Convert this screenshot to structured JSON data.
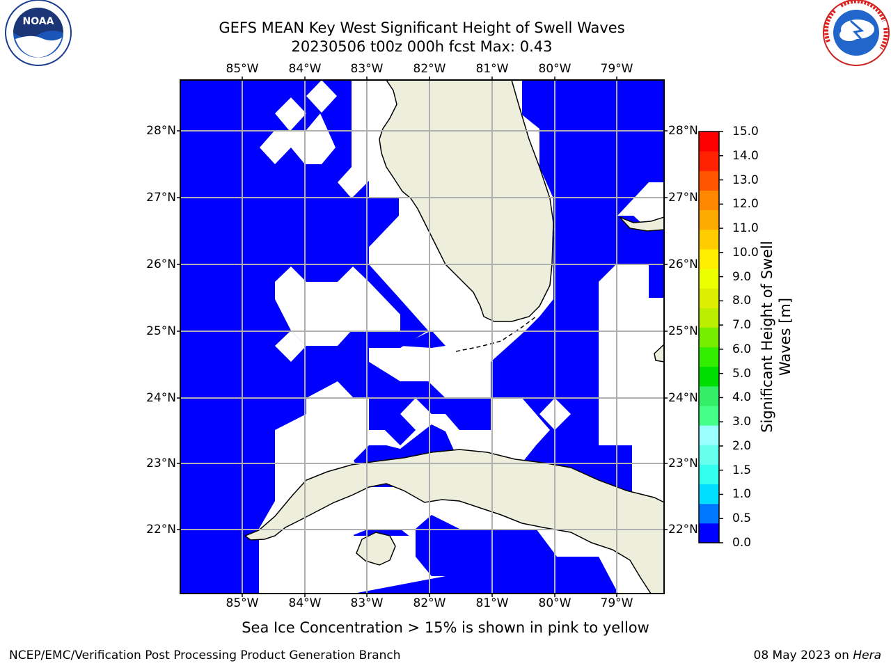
{
  "title_line1": "GEFS MEAN Key West Significant Height of Swell Waves",
  "title_line2": "20230506 t00z 000h fcst   Max: 0.43",
  "lon_ticks": [
    "85°W",
    "84°W",
    "83°W",
    "82°W",
    "81°W",
    "80°W",
    "79°W"
  ],
  "lat_ticks": [
    "28°N",
    "27°N",
    "26°N",
    "25°N",
    "24°N",
    "23°N",
    "22°N"
  ],
  "colorbar": {
    "label_line1": "Significant Height of Swell",
    "label_line2": "Waves [m]",
    "ticks": [
      "15.0",
      "14.0",
      "13.0",
      "12.0",
      "11.0",
      "10.0",
      "9.0",
      "8.0",
      "7.0",
      "6.0",
      "5.0",
      "4.0",
      "3.0",
      "2.0",
      "1.5",
      "1.0",
      "0.5",
      "0.0"
    ],
    "colors": [
      "#0000ff",
      "#0077ff",
      "#00ddff",
      "#33ffee",
      "#66ffee",
      "#99ffff",
      "#44ff88",
      "#33ee66",
      "#00dd00",
      "#33ee00",
      "#77ee00",
      "#bbee00",
      "#ddee00",
      "#eeff00",
      "#ffee00",
      "#ffcc00",
      "#ffaa00",
      "#ff8800",
      "#ff5500",
      "#ff2200",
      "#ff0000"
    ]
  },
  "subtitle": "Sea Ice Concentration > 15% is shown in pink to yellow",
  "footer_left": "NCEP/EMC/Verification Post Processing Product Generation Branch",
  "footer_date": "08 May 2023 on",
  "footer_machine": "Hera",
  "logos": {
    "noaa": "NOAA",
    "nws": "NATIONAL WEATHER SERVICE"
  },
  "colors": {
    "swell": "#0000ff",
    "land": "#eeeedd",
    "grid": "#b0b0b0"
  }
}
